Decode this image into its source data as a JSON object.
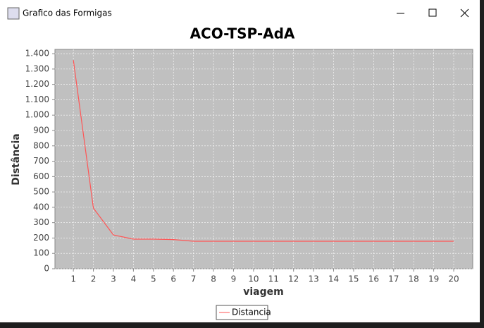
{
  "window": {
    "title": "Grafico das Formigas"
  },
  "chart_data": {
    "type": "line",
    "title": "ACO-TSP-AdA",
    "x_label": "viagem",
    "y_label": "Distância",
    "x": [
      1,
      2,
      3,
      4,
      5,
      6,
      7,
      8,
      9,
      10,
      11,
      12,
      13,
      14,
      15,
      16,
      17,
      18,
      19,
      20
    ],
    "series": [
      {
        "name": "Distancia",
        "color": "#ff5555",
        "values": [
          1358,
          395,
          220,
          193,
          193,
          190,
          179,
          179,
          179,
          179,
          179,
          179,
          179,
          179,
          179,
          179,
          179,
          179,
          179,
          179
        ]
      }
    ],
    "xlim": [
      0.08,
      20.95
    ],
    "xticks": [
      1,
      2,
      3,
      4,
      5,
      6,
      7,
      8,
      9,
      10,
      11,
      12,
      13,
      14,
      15,
      16,
      17,
      18,
      19,
      20
    ],
    "ylim": [
      0,
      1428
    ],
    "yticks": [
      0,
      100,
      200,
      300,
      400,
      500,
      600,
      700,
      800,
      900,
      {
        "value": 1000,
        "label": "1.000"
      },
      {
        "value": 1100,
        "label": "1.100"
      },
      {
        "value": 1200,
        "label": "1.200"
      },
      {
        "value": 1300,
        "label": "1.300"
      },
      {
        "value": 1400,
        "label": "1.400"
      }
    ],
    "grid": true,
    "legend": "bottom"
  }
}
